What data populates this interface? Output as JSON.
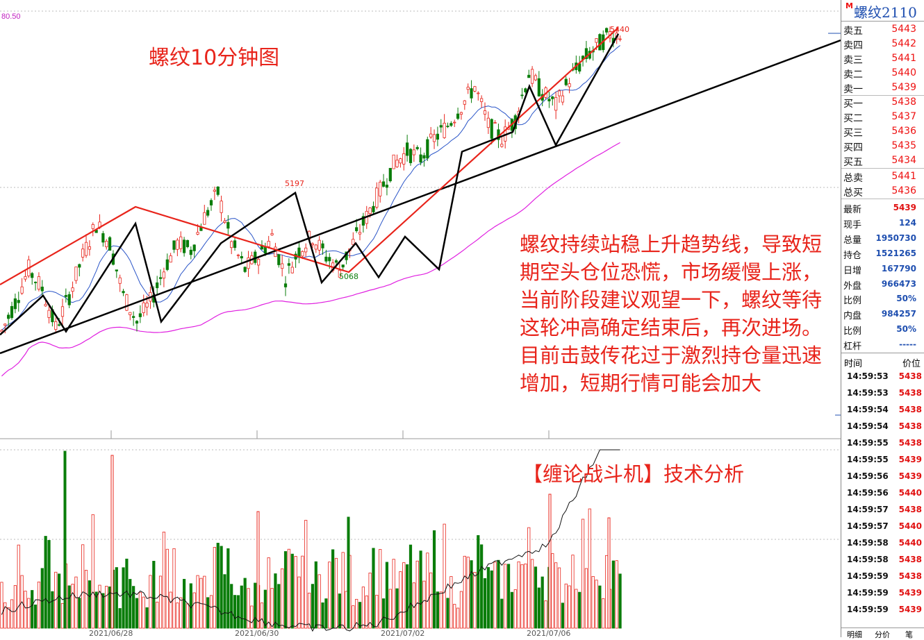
{
  "chart_title": "螺纹10分钟图",
  "annotation_text": "螺纹持续站稳上升趋势线，导致短期空头仓位恐慌，市场缓慢上涨，当前阶段建议观望一下，螺纹等待这轮冲高确定结束后，再次进场。目前击鼓传花过于激烈持仓量迅速增加，短期行情可能会加大",
  "brand_text": "【缠论战斗机】技术分析",
  "top_left_value": "80.50",
  "symbol": {
    "marker": "M",
    "name": "螺纹2110"
  },
  "order_book": {
    "sells": [
      {
        "label": "卖五",
        "price": "5443"
      },
      {
        "label": "卖四",
        "price": "5442"
      },
      {
        "label": "卖三",
        "price": "5441"
      },
      {
        "label": "卖二",
        "price": "5440"
      },
      {
        "label": "卖一",
        "price": "5439"
      }
    ],
    "buys": [
      {
        "label": "买一",
        "price": "5438"
      },
      {
        "label": "买二",
        "price": "5437"
      },
      {
        "label": "买三",
        "price": "5436"
      },
      {
        "label": "买四",
        "price": "5435"
      },
      {
        "label": "买五",
        "price": "5434"
      }
    ],
    "total_sell": {
      "label": "总卖",
      "value": "5441"
    },
    "total_buy": {
      "label": "总买",
      "value": "5436"
    }
  },
  "stats": [
    {
      "label": "最新",
      "value": "5439",
      "color": "#e11111"
    },
    {
      "label": "现手",
      "value": "124",
      "color": "#1f4fb0"
    },
    {
      "label": "总量",
      "value": "1950730",
      "color": "#1f4fb0"
    },
    {
      "label": "持仓",
      "value": "1521265",
      "color": "#1f4fb0"
    },
    {
      "label": "日增",
      "value": "167790",
      "color": "#1f4fb0"
    },
    {
      "label": "外盘",
      "value": "966473",
      "color": "#1f4fb0"
    },
    {
      "label": "比例",
      "value": "50%",
      "color": "#1f4fb0"
    },
    {
      "label": "内盘",
      "value": "984257",
      "color": "#1f4fb0"
    },
    {
      "label": "比例",
      "value": "50%",
      "color": "#1f4fb0"
    },
    {
      "label": "杠杆",
      "value": "-----",
      "color": "#1f4fb0"
    }
  ],
  "ticks_header": {
    "time": "时间",
    "price": "价位"
  },
  "ticks": [
    {
      "time": "14:59:53",
      "price": "5438"
    },
    {
      "time": "14:59:53",
      "price": "5438"
    },
    {
      "time": "14:59:54",
      "price": "5438"
    },
    {
      "time": "14:59:54",
      "price": "5438"
    },
    {
      "time": "14:59:55",
      "price": "5438"
    },
    {
      "time": "14:59:55",
      "price": "5439"
    },
    {
      "time": "14:59:56",
      "price": "5439"
    },
    {
      "time": "14:59:56",
      "price": "5440"
    },
    {
      "time": "14:59:57",
      "price": "5438"
    },
    {
      "time": "14:59:57",
      "price": "5440"
    },
    {
      "time": "14:59:58",
      "price": "5440"
    },
    {
      "time": "14:59:58",
      "price": "5438"
    },
    {
      "time": "14:59:59",
      "price": "5438"
    },
    {
      "time": "14:59:59",
      "price": "5439"
    },
    {
      "time": "14:59:59",
      "price": "5439"
    }
  ],
  "bottom_tabs": [
    "明细",
    "分价",
    "笔"
  ],
  "colors": {
    "up": "#e8241b",
    "down": "#0a7d0a",
    "ma_slow": "#e020e0",
    "ma_mid": "#2a55c8",
    "trend": "#000000"
  },
  "chart_data": {
    "type": "candlestick",
    "title": "螺纹10分钟图",
    "x_tick_labels": [
      "2021/06/28",
      "2021/06/30",
      "2021/07/02",
      "2021/07/06"
    ],
    "annotations": [
      {
        "label": "5440",
        "kind": "high"
      },
      {
        "label": "5197",
        "kind": "high"
      },
      {
        "label": "5068",
        "kind": "low"
      }
    ],
    "zigzag_pivots": [
      4980,
      5040,
      4985,
      5150,
      5000,
      5120,
      5197,
      5060,
      5120,
      5068,
      5130,
      5080,
      5260,
      5290,
      5360,
      5270,
      5440
    ],
    "zigzag_marked": [
      5068,
      5197,
      5440
    ],
    "price_path": [
      4985,
      5030,
      5080,
      5050,
      4990,
      5040,
      5100,
      5150,
      5120,
      5040,
      5000,
      5030,
      5080,
      5120,
      5110,
      5160,
      5197,
      5120,
      5080,
      5100,
      5130,
      5068,
      5110,
      5130,
      5100,
      5080,
      5120,
      5160,
      5200,
      5240,
      5260,
      5250,
      5280,
      5300,
      5330,
      5360,
      5300,
      5280,
      5310,
      5380,
      5350,
      5330,
      5370,
      5400,
      5420,
      5440
    ],
    "volume_path": [
      40,
      55,
      30,
      60,
      45,
      35,
      80,
      50,
      40,
      65,
      30,
      45,
      70,
      40,
      35,
      55,
      60,
      45,
      35,
      50,
      40,
      55,
      70,
      45,
      60,
      50,
      40,
      65,
      55,
      45,
      60,
      50,
      70,
      40,
      55,
      65,
      45,
      50,
      60,
      70,
      55,
      45,
      65,
      80,
      60,
      50
    ],
    "volume_spikes": [
      "2021/06/28",
      "2021/07/02"
    ],
    "indicators": [
      "MA (blue)",
      "MA long (magenta)",
      "open interest line"
    ]
  }
}
